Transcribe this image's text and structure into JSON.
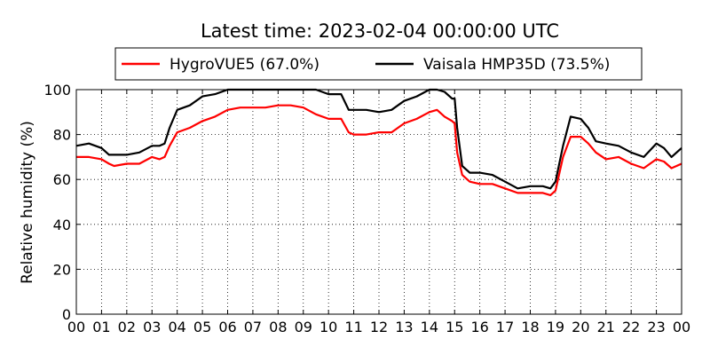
{
  "chart_data": {
    "type": "line",
    "title": "Latest time: 2023-02-04 00:00:00 UTC",
    "xlabel": "",
    "ylabel": "Relative humidity (%)",
    "xlim": [
      0,
      24
    ],
    "ylim": [
      0,
      100
    ],
    "x_tick_labels": [
      "00",
      "01",
      "02",
      "03",
      "04",
      "05",
      "06",
      "07",
      "08",
      "09",
      "10",
      "11",
      "12",
      "13",
      "14",
      "15",
      "16",
      "17",
      "18",
      "19",
      "20",
      "21",
      "22",
      "23",
      "00"
    ],
    "y_ticks": [
      0,
      20,
      40,
      60,
      80,
      100
    ],
    "grid": true,
    "legend_position": "top-center",
    "x": [
      0,
      0.5,
      1,
      1.3,
      1.5,
      2,
      2.5,
      3,
      3.3,
      3.5,
      3.7,
      4,
      4.5,
      5,
      5.5,
      6,
      6.5,
      7,
      7.5,
      8,
      8.5,
      9,
      9.5,
      10,
      10.5,
      10.8,
      11,
      11.5,
      12,
      12.5,
      13,
      13.5,
      14,
      14.3,
      14.6,
      14.9,
      15,
      15.1,
      15.3,
      15.6,
      16,
      16.5,
      17,
      17.5,
      18,
      18.5,
      18.8,
      19,
      19.3,
      19.6,
      20,
      20.3,
      20.6,
      21,
      21.5,
      22,
      22.5,
      23,
      23.3,
      23.6,
      24
    ],
    "series": [
      {
        "name": "HygroVUE5 (67.0%)",
        "color": "#ff0000",
        "values": [
          70,
          70,
          69,
          67,
          66,
          67,
          67,
          70,
          69,
          70,
          75,
          81,
          83,
          86,
          88,
          91,
          92,
          92,
          92,
          93,
          93,
          92,
          89,
          87,
          87,
          81,
          80,
          80,
          81,
          81,
          85,
          87,
          90,
          91,
          88,
          86,
          85,
          72,
          62,
          59,
          58,
          58,
          56,
          54,
          54,
          54,
          53,
          55,
          70,
          79,
          79,
          76,
          72,
          69,
          70,
          67,
          65,
          69,
          68,
          65,
          67
        ]
      },
      {
        "name": "Vaisala HMP35D (73.5%)",
        "color": "#000000",
        "values": [
          75,
          76,
          74,
          71,
          71,
          71,
          72,
          75,
          75,
          76,
          83,
          91,
          93,
          97,
          98,
          100,
          100,
          100,
          100,
          100,
          100,
          100,
          100,
          98,
          98,
          91,
          91,
          91,
          90,
          91,
          95,
          97,
          100,
          100,
          99,
          96,
          96,
          83,
          66,
          63,
          63,
          62,
          59,
          56,
          57,
          57,
          56,
          59,
          75,
          88,
          87,
          83,
          77,
          76,
          75,
          72,
          70,
          76,
          74,
          70,
          74
        ]
      }
    ]
  }
}
